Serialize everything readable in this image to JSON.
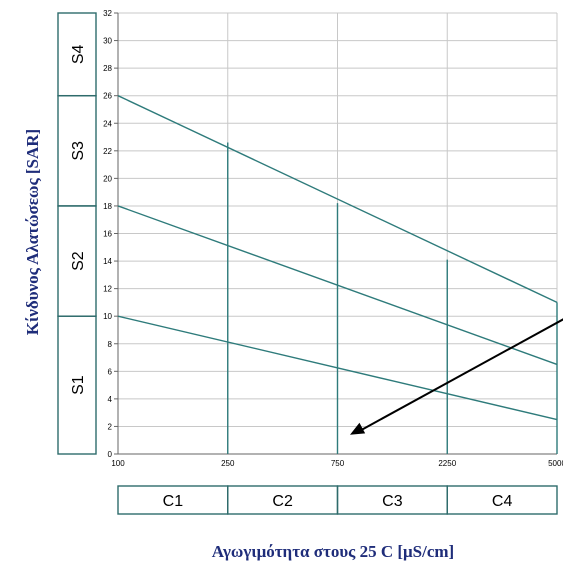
{
  "chart_data": {
    "type": "line",
    "title": "",
    "ylabel": "Κίνδυνος Αλατώσεως [SAR]",
    "xlabel": "Αγωγιμότητα στους 25 C [μS/cm]",
    "ylim": [
      0,
      32
    ],
    "y_ticks": [
      "0",
      "2",
      "4",
      "6",
      "8",
      "10",
      "12",
      "14",
      "16",
      "18",
      "20",
      "22",
      "24",
      "26",
      "28",
      "30",
      "32"
    ],
    "x_tick_labels": [
      "100",
      "250",
      "750",
      "2250",
      "5000"
    ],
    "x_scale": "log",
    "grid": true,
    "series": [
      {
        "x": [
          100,
          5000
        ],
        "values": [
          26,
          11
        ]
      },
      {
        "x": [
          100,
          5000
        ],
        "values": [
          18,
          6.5
        ]
      },
      {
        "x": [
          100,
          5000
        ],
        "values": [
          10,
          2.5
        ]
      }
    ],
    "vertical_segments": [
      {
        "x": 250,
        "y_top": 22.6
      },
      {
        "x": 750,
        "y_top": 18.2
      },
      {
        "x": 2250,
        "y_top": 14.1
      }
    ],
    "sodium_classes": [
      {
        "label": "S1",
        "y_range": [
          0,
          10
        ]
      },
      {
        "label": "S2",
        "y_range": [
          10,
          18
        ]
      },
      {
        "label": "S3",
        "y_range": [
          18,
          26
        ]
      },
      {
        "label": "S4",
        "y_range": [
          26,
          32
        ]
      }
    ],
    "salinity_classes": [
      {
        "label": "C1",
        "x_range": [
          100,
          250
        ]
      },
      {
        "label": "C2",
        "x_range": [
          250,
          750
        ]
      },
      {
        "label": "C3",
        "x_range": [
          750,
          2250
        ]
      },
      {
        "label": "C4",
        "x_range": [
          2250,
          5000
        ]
      }
    ],
    "annotation_arrow": {
      "from": [
        5000,
        10.4
      ],
      "to": [
        850,
        1.4
      ]
    },
    "colors": {
      "lines": "#2e7b7b",
      "grid": "#c8c8c8",
      "axis_text": "#1f2d7a",
      "arrow": "#000000",
      "box": "#2e6b6b"
    }
  }
}
